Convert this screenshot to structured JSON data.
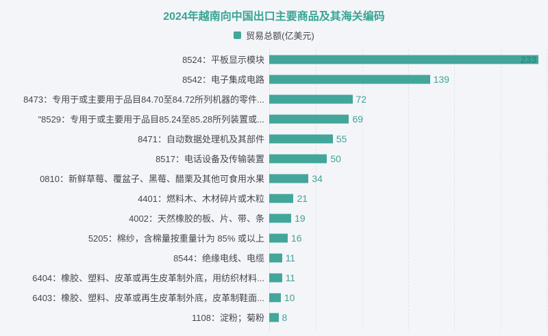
{
  "page": {
    "title": "2024年越南向中国出口主要商品及其海关编码",
    "legend": {
      "label": "贸易总额(亿美元)"
    }
  },
  "colors": {
    "background": "#f4f5f9",
    "title": "#38a493",
    "bar": "#42a69a",
    "value_label": "#3fa296",
    "value_label_inside": "#2c8c81",
    "category_label": "#45464e",
    "grid_line": "#e2e4ec",
    "axis_line": "#e2e4ec",
    "legend_swatch": "#42a69a",
    "legend_text": "#45464e"
  },
  "chart_data": {
    "type": "bar",
    "orientation": "horizontal",
    "title": "2024年越南向中国出口主要商品及其海关编码",
    "series_name": "贸易总额(亿美元)",
    "legend_position": "top",
    "categories": [
      "8524：平板显示模块",
      "8542：电子集成电路",
      "8473：专用于或主要用于品目84.70至84.72所列机器的零件...",
      "\"8529：专用于或主要用于品目85.24至85.28所列装置或...",
      "8471：自动数据处理机及其部件",
      "8517：电话设备及传输装置",
      "0810：新鲜草莓、覆盆子、黑莓、醋栗及其他可食用水果",
      "4401：燃料木、木材碎片或木粒",
      "4002：天然橡胶的板、片、带、条",
      "5205：棉纱，含棉量按重量计为 85% 或以上",
      "8544：绝缘电线、电缆",
      "6404：橡胶、塑料、皮革或再生皮革制外底，用纺织材料...",
      "6403：橡胶、塑料、皮革或再生皮革制外底，皮革制鞋面...",
      "1108：淀粉；菊粉"
    ],
    "values": [
      233,
      139,
      72,
      69,
      55,
      50,
      34,
      21,
      19,
      16,
      11,
      11,
      10,
      8
    ],
    "xlim": [
      0,
      240
    ],
    "grid_interval": 40,
    "grid": true,
    "value_labels_shown": true
  }
}
